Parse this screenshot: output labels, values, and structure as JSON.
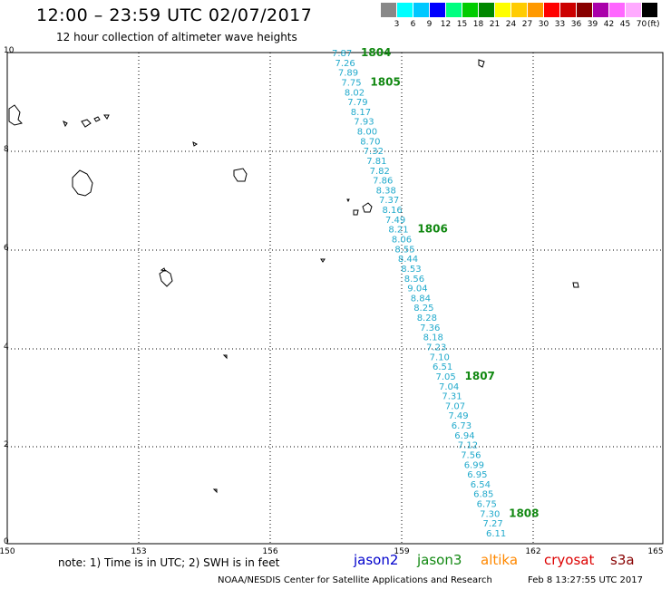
{
  "title": "12:00 – 23:59 UTC 02/07/2017",
  "subtitle": "12 hour collection of altimeter wave heights",
  "legend": {
    "labels": [
      "3",
      "6",
      "9",
      "12",
      "15",
      "18",
      "21",
      "24",
      "27",
      "30",
      "33",
      "36",
      "39",
      "42",
      "45",
      "70"
    ],
    "unit": "(ft)",
    "colors": [
      "#888888",
      "#00ffff",
      "#00c8ff",
      "#0000ff",
      "#00ff80",
      "#00cc00",
      "#008800",
      "#ffff00",
      "#ffcc00",
      "#ff9900",
      "#ff0000",
      "#cc0000",
      "#880000",
      "#aa00aa",
      "#ff66ff",
      "#ffaaff",
      "#000000"
    ]
  },
  "axes": {
    "x_ticks": [
      "150",
      "153",
      "156",
      "159",
      "162",
      "165"
    ],
    "y_ticks": [
      "10",
      "8",
      "6",
      "4",
      "2",
      "0"
    ]
  },
  "note": "note:  1) Time is in UTC;  2) SWH is in feet",
  "satellites": [
    {
      "name": "jason2",
      "color": "#0000cc"
    },
    {
      "name": "jason3",
      "color": "#118811"
    },
    {
      "name": "altika",
      "color": "#ff8800"
    },
    {
      "name": "cryosat",
      "color": "#dd0000"
    },
    {
      "name": "s3a",
      "color": "#880000"
    }
  ],
  "credit": "NOAA/NESDIS Center for Satellite Applications and Research",
  "timestamp": "Feb  8 13:27:55 UTC 2017",
  "track": {
    "satellite": "jason3",
    "values": [
      "7.87",
      "7.26",
      "7.89",
      "7.75",
      "8.02",
      "7.79",
      "8.17",
      "7.93",
      "8.00",
      "8.70",
      "7.32",
      "7.81",
      "7.82",
      "7.86",
      "8.38",
      "7.37",
      "8.16",
      "7.49",
      "8.21",
      "8.06",
      "8.55",
      "8.44",
      "8.53",
      "8.56",
      "9.04",
      "8.84",
      "8.25",
      "8.28",
      "7.36",
      "8.18",
      "7.23",
      "7.10",
      "6.51",
      "7.05",
      "7.04",
      "7.31",
      "7.07",
      "7.49",
      "6.73",
      "6.94",
      "7.12",
      "7.56",
      "6.99",
      "6.95",
      "6.54",
      "6.85",
      "6.75",
      "7.30",
      "7.27",
      "6.11"
    ],
    "highlight_value": "9.04",
    "pass_times": [
      "1804",
      "1805",
      "1806",
      "1807",
      "1808"
    ]
  }
}
